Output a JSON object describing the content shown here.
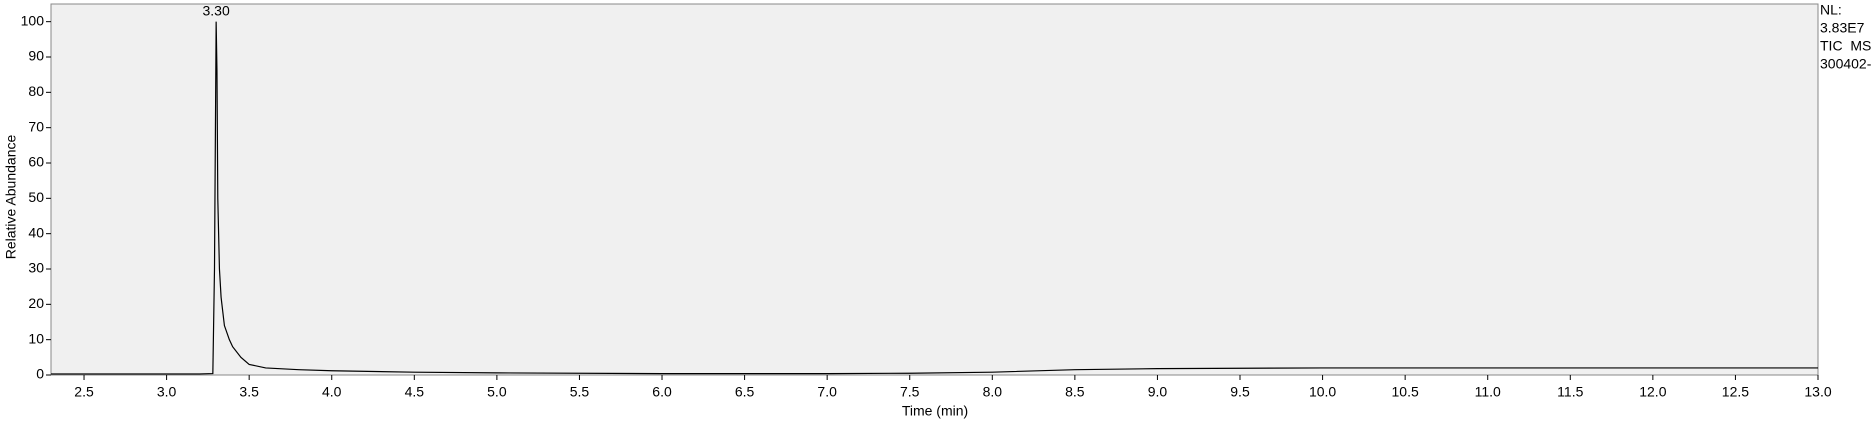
{
  "chart_data": {
    "type": "line",
    "x_label": "Time (min)",
    "y_label": "Relative Abundance",
    "x": [
      2.3,
      2.8,
      3.2,
      3.28,
      3.29,
      3.3,
      3.305,
      3.31,
      3.32,
      3.33,
      3.35,
      3.38,
      3.4,
      3.45,
      3.5,
      3.6,
      3.8,
      4.0,
      4.5,
      5.0,
      6.0,
      7.0,
      7.5,
      8.0,
      8.5,
      9.0,
      10.0,
      11.0,
      12.0,
      13.0
    ],
    "values": [
      0.3,
      0.3,
      0.3,
      0.4,
      30,
      100,
      86,
      50,
      30,
      22,
      14,
      10,
      8,
      5,
      3,
      2,
      1.5,
      1.2,
      0.8,
      0.6,
      0.4,
      0.4,
      0.5,
      0.8,
      1.5,
      1.8,
      2,
      2,
      2,
      2
    ],
    "color": "#000000",
    "xlim": [
      2.3,
      13.0
    ],
    "xticks": [
      2.5,
      {
        "value": 3,
        "label": "3.0"
      },
      3.5,
      {
        "value": 4,
        "label": "4.0"
      },
      4.5,
      {
        "value": 5,
        "label": "5.0"
      },
      5.5,
      {
        "value": 6,
        "label": "6.0"
      },
      6.5,
      {
        "value": 7,
        "label": "7.0"
      },
      7.5,
      {
        "value": 8,
        "label": "8.0"
      },
      8.5,
      {
        "value": 9,
        "label": "9.0"
      },
      9.5,
      {
        "value": 10,
        "label": "10.0"
      },
      10.5,
      {
        "value": 11,
        "label": "11.0"
      },
      11.5,
      {
        "value": 12,
        "label": "12.0"
      },
      12.5,
      {
        "value": 13,
        "label": "13.0"
      }
    ],
    "ylim": [
      0,
      105
    ],
    "yticks": [
      0,
      10,
      20,
      30,
      40,
      50,
      60,
      70,
      80,
      90,
      100
    ],
    "annotations": [
      {
        "label": "3.30",
        "x": 3.3,
        "y": 100
      }
    ],
    "side_notes": [
      "NL:",
      "3.83E7",
      "TIC  MS",
      "300402-"
    ]
  }
}
